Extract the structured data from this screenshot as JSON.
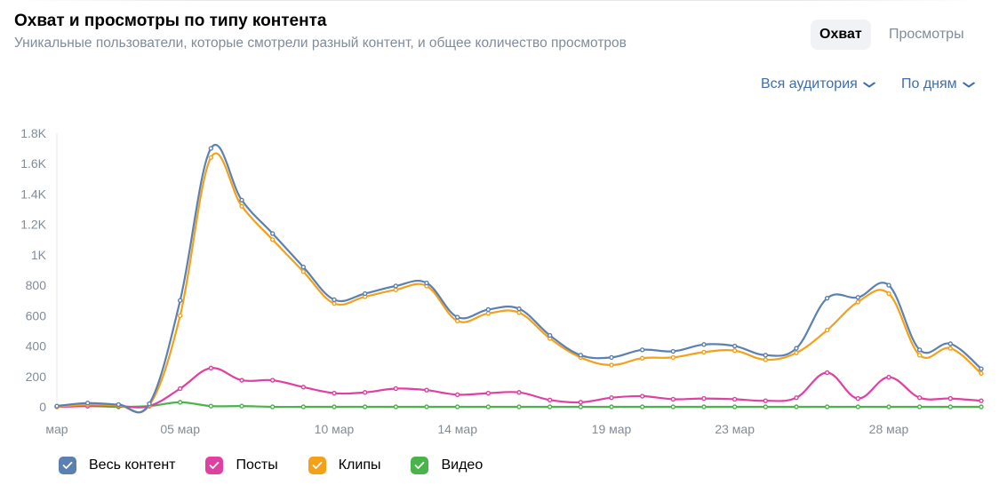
{
  "header": {
    "title": "Охват и просмотры по типу контента",
    "subtitle": "Уникальные пользователи, которые смотрели разный контент, и общее количество просмотров"
  },
  "toggle": {
    "reach_label": "Охват",
    "views_label": "Просмотры",
    "selected": "reach"
  },
  "filters": {
    "audience_label": "Вся аудитория",
    "period_label": "По дням"
  },
  "icons": {
    "dropdown": "chevron-down-icon",
    "legend_check": "check-icon"
  },
  "chart_data": {
    "type": "line",
    "x": [
      1,
      2,
      3,
      4,
      5,
      6,
      7,
      8,
      9,
      10,
      11,
      12,
      13,
      14,
      15,
      16,
      17,
      18,
      19,
      20,
      21,
      22,
      23,
      24,
      25,
      26,
      27,
      28,
      29,
      30,
      31
    ],
    "x_tick_labels": [
      {
        "x": 1,
        "label": "мар"
      },
      {
        "x": 5,
        "label": "05 мар"
      },
      {
        "x": 10,
        "label": "10 мар"
      },
      {
        "x": 14,
        "label": "14 мар"
      },
      {
        "x": 19,
        "label": "19 мар"
      },
      {
        "x": 23,
        "label": "23 мар"
      },
      {
        "x": 28,
        "label": "28 мар"
      }
    ],
    "y_ticks": [
      0,
      200,
      400,
      600,
      800,
      1000,
      1200,
      1400,
      1600,
      1800
    ],
    "y_tick_labels": [
      "0",
      "200",
      "400",
      "600",
      "800",
      "1K",
      "1.2K",
      "1.4K",
      "1.6K",
      "1.8K"
    ],
    "ylim": [
      0,
      1800
    ],
    "grid": false,
    "legend_position": "bottom-left",
    "series": [
      {
        "name": "Весь контент",
        "color": "#5b80b2",
        "values": [
          5,
          25,
          15,
          20,
          700,
          1700,
          1360,
          1140,
          920,
          705,
          745,
          795,
          815,
          590,
          640,
          645,
          470,
          340,
          325,
          375,
          365,
          410,
          400,
          340,
          385,
          715,
          720,
          800,
          375,
          415,
          250
        ]
      },
      {
        "name": "Посты",
        "color": "#e040a0",
        "values": [
          0,
          5,
          5,
          5,
          120,
          255,
          175,
          175,
          130,
          90,
          95,
          120,
          110,
          80,
          90,
          95,
          45,
          30,
          60,
          70,
          50,
          55,
          50,
          40,
          60,
          225,
          55,
          195,
          60,
          55,
          40
        ]
      },
      {
        "name": "Клипы",
        "color": "#f4a019",
        "values": [
          0,
          15,
          10,
          10,
          600,
          1640,
          1320,
          1100,
          890,
          680,
          725,
          770,
          795,
          565,
          615,
          620,
          450,
          325,
          275,
          320,
          325,
          360,
          370,
          310,
          355,
          505,
          690,
          745,
          340,
          385,
          220
        ]
      },
      {
        "name": "Видео",
        "color": "#4bb34b",
        "values": [
          0,
          5,
          0,
          5,
          30,
          5,
          5,
          0,
          0,
          0,
          0,
          0,
          0,
          0,
          0,
          0,
          0,
          0,
          0,
          0,
          0,
          0,
          0,
          0,
          0,
          0,
          0,
          0,
          0,
          0,
          0
        ]
      }
    ]
  }
}
